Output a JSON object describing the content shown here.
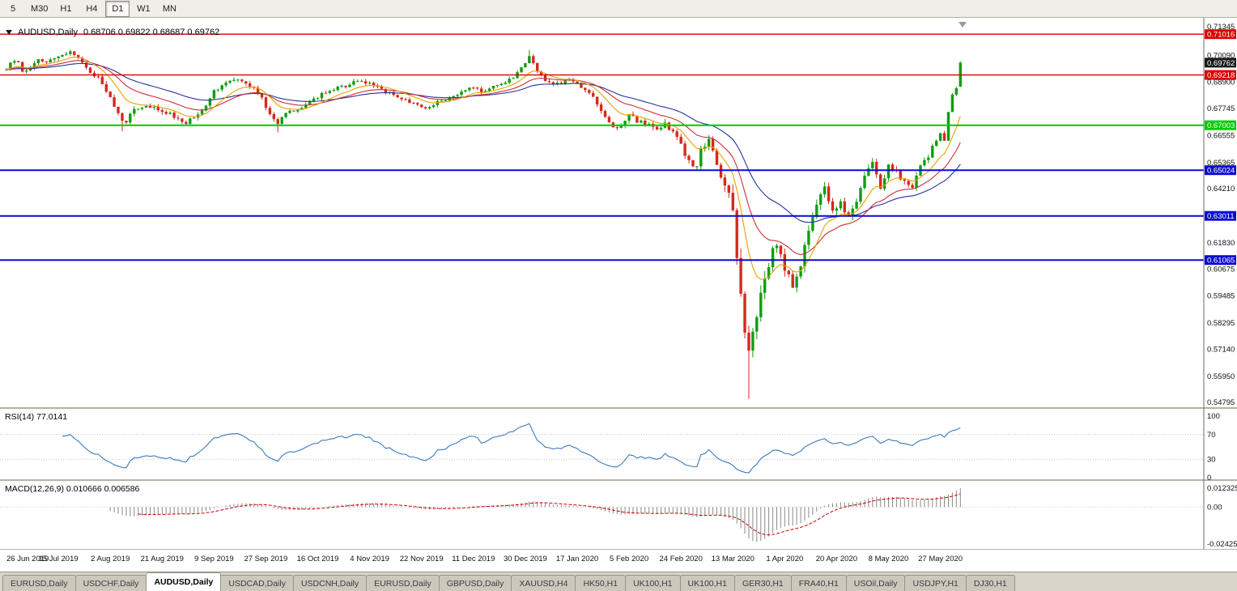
{
  "toolbar": {
    "timeframes": [
      {
        "label": "5",
        "active": false
      },
      {
        "label": "M30",
        "active": false
      },
      {
        "label": "H1",
        "active": false
      },
      {
        "label": "H4",
        "active": false
      },
      {
        "label": "D1",
        "active": true
      },
      {
        "label": "W1",
        "active": false
      },
      {
        "label": "MN",
        "active": false
      }
    ]
  },
  "chart": {
    "symbol_period": "AUDUSD,Daily",
    "ohlc_text": "0.68706 0.69822 0.68687 0.69762"
  },
  "price_axis": {
    "ticks": [
      {
        "label": "0.71345",
        "value": 0.71345
      },
      {
        "label": "0.70090",
        "value": 0.7009
      },
      {
        "label": "0.68900",
        "value": 0.689
      },
      {
        "label": "0.67745",
        "value": 0.67745
      },
      {
        "label": "0.66555",
        "value": 0.66555
      },
      {
        "label": "0.65365",
        "value": 0.65365
      },
      {
        "label": "0.64210",
        "value": 0.6421
      },
      {
        "label": "0.61830",
        "value": 0.6183
      },
      {
        "label": "0.60675",
        "value": 0.60675
      },
      {
        "label": "0.59485",
        "value": 0.59485
      },
      {
        "label": "0.58295",
        "value": 0.58295
      },
      {
        "label": "0.57140",
        "value": 0.5714
      },
      {
        "label": "0.55950",
        "value": 0.5595
      },
      {
        "label": "0.54795",
        "value": 0.54795
      }
    ],
    "current_price": {
      "label": "0.69762",
      "value": 0.69762,
      "bg": "#1a1a1a",
      "fg": "#ffffff"
    }
  },
  "levels": [
    {
      "label": "0.71016",
      "value": 0.71016,
      "color": "#dd0000",
      "width": 1.4
    },
    {
      "label": "0.69218",
      "value": 0.69218,
      "color": "#dd0000",
      "width": 1.4
    },
    {
      "label": "0.67003",
      "value": 0.67003,
      "color": "#00cc00",
      "width": 2
    },
    {
      "label": "0.65024",
      "value": 0.65024,
      "color": "#0a0ad2",
      "width": 2
    },
    {
      "label": "0.63011",
      "value": 0.63011,
      "color": "#0a0ad2",
      "width": 2
    },
    {
      "label": "0.61065",
      "value": 0.61065,
      "color": "#0a0ad2",
      "width": 2
    }
  ],
  "rsi_panel": {
    "label": "RSI(14)",
    "value": "77.0141",
    "ticks": [
      {
        "label": "100",
        "value": 100
      },
      {
        "label": "70",
        "value": 70
      },
      {
        "label": "30",
        "value": 30
      },
      {
        "label": "0",
        "value": 0
      }
    ],
    "level_lines": [
      70,
      30
    ],
    "line_color": "#3b7abd"
  },
  "macd_panel": {
    "label": "MACD(12,26,9)",
    "value_main": "0.010666",
    "value_signal": "0.006586",
    "ticks": [
      {
        "label": "0.012325",
        "value": 0.012325
      },
      {
        "label": "0.00",
        "value": 0
      },
      {
        "label": "-0.02425",
        "value": -0.02425
      }
    ],
    "histogram_color": "#8a8a8a",
    "signal_color": "#cc0000"
  },
  "date_axis": [
    "26 Jun 2019",
    "15 Jul 2019",
    "2 Aug 2019",
    "21 Aug 2019",
    "9 Sep 2019",
    "27 Sep 2019",
    "16 Oct 2019",
    "4 Nov 2019",
    "22 Nov 2019",
    "11 Dec 2019",
    "30 Dec 2019",
    "17 Jan 2020",
    "5 Feb 2020",
    "24 Feb 2020",
    "13 Mar 2020",
    "1 Apr 2020",
    "20 Apr 2020",
    "8 May 2020",
    "27 May 2020"
  ],
  "tabs": [
    {
      "label": "EURUSD,Daily",
      "active": false
    },
    {
      "label": "USDCHF,Daily",
      "active": false
    },
    {
      "label": "AUDUSD,Daily",
      "active": true
    },
    {
      "label": "USDCAD,Daily",
      "active": false
    },
    {
      "label": "USDCNH,Daily",
      "active": false
    },
    {
      "label": "EURUSD,Daily",
      "active": false
    },
    {
      "label": "GBPUSD,Daily",
      "active": false
    },
    {
      "label": "XAUUSD,H4",
      "active": false
    },
    {
      "label": "HK50,H1",
      "active": false
    },
    {
      "label": "UK100,H1",
      "active": false
    },
    {
      "label": "UK100,H1",
      "active": false
    },
    {
      "label": "GER30,H1",
      "active": false
    },
    {
      "label": "FRA40,H1",
      "active": false
    },
    {
      "label": "USOil,Daily",
      "active": false
    },
    {
      "label": "USDJPY,H1",
      "active": false
    },
    {
      "label": "DJ30,H1",
      "active": false
    }
  ],
  "chart_data": {
    "type": "candlestick",
    "symbol": "AUDUSD",
    "timeframe": "Daily",
    "title": "AUDUSD,Daily",
    "price_range": {
      "min": 0.54795,
      "max": 0.71345
    },
    "candle_count": 240,
    "labels_every": 13,
    "last_candle": {
      "open": 0.68706,
      "high": 0.69822,
      "low": 0.68687,
      "close": 0.69762
    },
    "crash_low": {
      "index": 186,
      "price": 0.5495
    },
    "forced_wicks": [
      {
        "index": 16,
        "high": 0.7034
      },
      {
        "index": 131,
        "high": 0.7032
      },
      {
        "index": 29,
        "low": 0.6674
      },
      {
        "index": 68,
        "low": 0.6669
      }
    ],
    "close_anchors": [
      [
        0,
        0.6955
      ],
      [
        1,
        0.6968
      ],
      [
        2,
        0.6985
      ],
      [
        3,
        0.6975
      ],
      [
        4,
        0.6945
      ],
      [
        5,
        0.6932
      ],
      [
        6,
        0.696
      ],
      [
        8,
        0.6985
      ],
      [
        10,
        0.6985
      ],
      [
        12,
        0.7
      ],
      [
        13,
        0.7005
      ],
      [
        15,
        0.7022
      ],
      [
        16,
        0.7028
      ],
      [
        17,
        0.701
      ],
      [
        18,
        0.699
      ],
      [
        20,
        0.695
      ],
      [
        22,
        0.6925
      ],
      [
        24,
        0.689
      ],
      [
        25,
        0.6855
      ],
      [
        26,
        0.682
      ],
      [
        27,
        0.679
      ],
      [
        28,
        0.6758
      ],
      [
        29,
        0.673
      ],
      [
        30,
        0.6715
      ],
      [
        31,
        0.6758
      ],
      [
        33,
        0.6775
      ],
      [
        35,
        0.6788
      ],
      [
        37,
        0.6775
      ],
      [
        39,
        0.6768
      ],
      [
        41,
        0.6748
      ],
      [
        43,
        0.6722
      ],
      [
        45,
        0.6712
      ],
      [
        47,
        0.6738
      ],
      [
        49,
        0.6768
      ],
      [
        51,
        0.6818
      ],
      [
        52,
        0.6858
      ],
      [
        54,
        0.6872
      ],
      [
        56,
        0.6888
      ],
      [
        58,
        0.6905
      ],
      [
        60,
        0.689
      ],
      [
        62,
        0.6862
      ],
      [
        64,
        0.682
      ],
      [
        65,
        0.678
      ],
      [
        66,
        0.6755
      ],
      [
        67,
        0.6722
      ],
      [
        68,
        0.6702
      ],
      [
        69,
        0.674
      ],
      [
        71,
        0.6758
      ],
      [
        73,
        0.6772
      ],
      [
        75,
        0.679
      ],
      [
        77,
        0.6815
      ],
      [
        79,
        0.6838
      ],
      [
        81,
        0.6855
      ],
      [
        83,
        0.6868
      ],
      [
        85,
        0.6875
      ],
      [
        87,
        0.6888
      ],
      [
        89,
        0.6892
      ],
      [
        91,
        0.6888
      ],
      [
        93,
        0.6868
      ],
      [
        95,
        0.685
      ],
      [
        97,
        0.6838
      ],
      [
        99,
        0.6815
      ],
      [
        101,
        0.68
      ],
      [
        103,
        0.6788
      ],
      [
        105,
        0.6778
      ],
      [
        107,
        0.6795
      ],
      [
        109,
        0.681
      ],
      [
        111,
        0.6818
      ],
      [
        113,
        0.684
      ],
      [
        115,
        0.6855
      ],
      [
        117,
        0.6868
      ],
      [
        119,
        0.685
      ],
      [
        121,
        0.6862
      ],
      [
        123,
        0.6878
      ],
      [
        125,
        0.689
      ],
      [
        127,
        0.691
      ],
      [
        129,
        0.695
      ],
      [
        130,
        0.6975
      ],
      [
        131,
        0.7
      ],
      [
        132,
        0.698
      ],
      [
        133,
        0.6938
      ],
      [
        135,
        0.6902
      ],
      [
        137,
        0.6882
      ],
      [
        139,
        0.689
      ],
      [
        141,
        0.6898
      ],
      [
        143,
        0.6878
      ],
      [
        145,
        0.6855
      ],
      [
        147,
        0.682
      ],
      [
        149,
        0.677
      ],
      [
        151,
        0.6712
      ],
      [
        153,
        0.6685
      ],
      [
        155,
        0.672
      ],
      [
        156,
        0.6742
      ],
      [
        158,
        0.672
      ],
      [
        161,
        0.67
      ],
      [
        163,
        0.6685
      ],
      [
        165,
        0.6705
      ],
      [
        167,
        0.6672
      ],
      [
        169,
        0.661
      ],
      [
        171,
        0.6545
      ],
      [
        173,
        0.6515
      ],
      [
        174,
        0.661
      ],
      [
        176,
        0.6625
      ],
      [
        177,
        0.6585
      ],
      [
        179,
        0.649
      ],
      [
        181,
        0.639
      ],
      [
        182,
        0.634
      ],
      [
        183,
        0.612
      ],
      [
        185,
        0.579
      ],
      [
        186,
        0.5745
      ],
      [
        187,
        0.58
      ],
      [
        188,
        0.583
      ],
      [
        189,
        0.596
      ],
      [
        191,
        0.6065
      ],
      [
        192,
        0.617
      ],
      [
        194,
        0.6135
      ],
      [
        195,
        0.607
      ],
      [
        197,
        0.599
      ],
      [
        199,
        0.609
      ],
      [
        201,
        0.6235
      ],
      [
        203,
        0.634
      ],
      [
        205,
        0.644
      ],
      [
        207,
        0.632
      ],
      [
        209,
        0.6365
      ],
      [
        211,
        0.629
      ],
      [
        213,
        0.637
      ],
      [
        215,
        0.6465
      ],
      [
        217,
        0.655
      ],
      [
        219,
        0.6425
      ],
      [
        221,
        0.653
      ],
      [
        223,
        0.649
      ],
      [
        225,
        0.6452
      ],
      [
        227,
        0.6415
      ],
      [
        229,
        0.6525
      ],
      [
        231,
        0.6565
      ],
      [
        233,
        0.664
      ],
      [
        234,
        0.6655
      ],
      [
        235,
        0.6638
      ],
      [
        236,
        0.6755
      ],
      [
        237,
        0.684
      ],
      [
        238,
        0.6871
      ],
      [
        239,
        0.69762
      ]
    ],
    "volatility_anchors": [
      [
        0,
        0.0035
      ],
      [
        30,
        0.0035
      ],
      [
        60,
        0.003
      ],
      [
        90,
        0.0026
      ],
      [
        120,
        0.0026
      ],
      [
        150,
        0.0032
      ],
      [
        170,
        0.0045
      ],
      [
        178,
        0.007
      ],
      [
        182,
        0.012
      ],
      [
        186,
        0.014
      ],
      [
        190,
        0.009
      ],
      [
        196,
        0.0075
      ],
      [
        205,
        0.006
      ],
      [
        215,
        0.005
      ],
      [
        225,
        0.0045
      ],
      [
        233,
        0.004
      ],
      [
        239,
        0.0035
      ]
    ],
    "moving_averages": [
      {
        "type": "ema",
        "period": 40,
        "color": "#24349c"
      },
      {
        "type": "ema",
        "period": 21,
        "color": "#cc2e3c"
      },
      {
        "type": "ema",
        "period": 10,
        "color": "#e8a200"
      }
    ],
    "horizontal_levels": [
      0.71016,
      0.69218,
      0.67003,
      0.65024,
      0.63011,
      0.61065
    ],
    "rsi": {
      "period": 14,
      "current": 77.0141,
      "range": [
        0,
        100
      ]
    },
    "macd": {
      "fast": 12,
      "slow": 26,
      "signal": 9,
      "current_main": 0.010666,
      "current_signal": 0.006586,
      "range": [
        -0.02425,
        0.012325
      ]
    },
    "candle_up_color": "#119c11",
    "candle_down_color": "#d6281e"
  }
}
